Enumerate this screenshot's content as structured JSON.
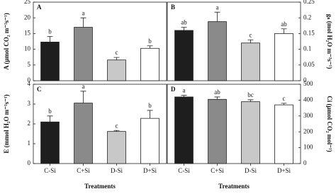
{
  "chart_data": [
    {
      "type": "bar",
      "panel_label": "A",
      "ylabel": "A (μmol CO₂ m⁻²s⁻¹)",
      "y_axis_side": "left",
      "categories": [
        null,
        null,
        null,
        null
      ],
      "colors": [
        "#1e1e1e",
        "#8a8a8a",
        "#c8c8c8",
        "#ffffff"
      ],
      "values": [
        12.3,
        17,
        6.6,
        10.3
      ],
      "errors": [
        1.8,
        3,
        0.8,
        0.8
      ],
      "letters": [
        "b",
        "a",
        "c",
        "b"
      ],
      "ylim": [
        0,
        25
      ],
      "yticks": [
        0,
        5,
        10,
        15,
        20,
        25
      ]
    },
    {
      "type": "bar",
      "panel_label": "B",
      "ylabel": "gₛ (mol H₂O m⁻²s⁻¹)",
      "y_axis_side": "right",
      "categories": [
        null,
        null,
        null,
        null
      ],
      "colors": [
        "#1e1e1e",
        "#8a8a8a",
        "#c8c8c8",
        "#ffffff"
      ],
      "values": [
        0.16,
        0.188,
        0.12,
        0.15
      ],
      "errors": [
        0.01,
        0.03,
        0.01,
        0.015
      ],
      "letters": [
        "ab",
        "a",
        "c",
        "ab"
      ],
      "ylim": [
        0,
        0.25
      ],
      "yticks": [
        0,
        0.05,
        0.1,
        0.15,
        0.2,
        0.25
      ]
    },
    {
      "type": "bar",
      "panel_label": "C",
      "ylabel": "E (mmol H₂O m⁻²s⁻¹)",
      "y_axis_side": "left",
      "xlabel": "Treatments",
      "categories": [
        "C-Si",
        "C+Si",
        "D-Si",
        "D+Si"
      ],
      "colors": [
        "#1e1e1e",
        "#8a8a8a",
        "#c8c8c8",
        "#ffffff"
      ],
      "values": [
        2.1,
        3.05,
        1.62,
        2.28
      ],
      "errors": [
        0.3,
        0.6,
        0.05,
        0.4
      ],
      "letters": [
        "b",
        "a",
        "c",
        "b"
      ],
      "ylim": [
        0,
        4
      ],
      "yticks": [
        0,
        1,
        2,
        3,
        4
      ]
    },
    {
      "type": "bar",
      "panel_label": "D",
      "ylabel": "Ci (μmol CO₂ mol⁻¹)",
      "y_axis_side": "right",
      "xlabel": "Treatments",
      "categories": [
        "C-Si",
        "C+Si",
        "D-Si",
        "D+Si"
      ],
      "colors": [
        "#1e1e1e",
        "#8a8a8a",
        "#c8c8c8",
        "#ffffff"
      ],
      "values": [
        420,
        405,
        390,
        370
      ],
      "errors": [
        10,
        15,
        12,
        10
      ],
      "letters": [
        "a",
        "ab",
        "bc",
        "c"
      ],
      "ylim": [
        0,
        500
      ],
      "yticks": [
        0,
        100,
        200,
        300,
        400,
        500
      ]
    }
  ]
}
